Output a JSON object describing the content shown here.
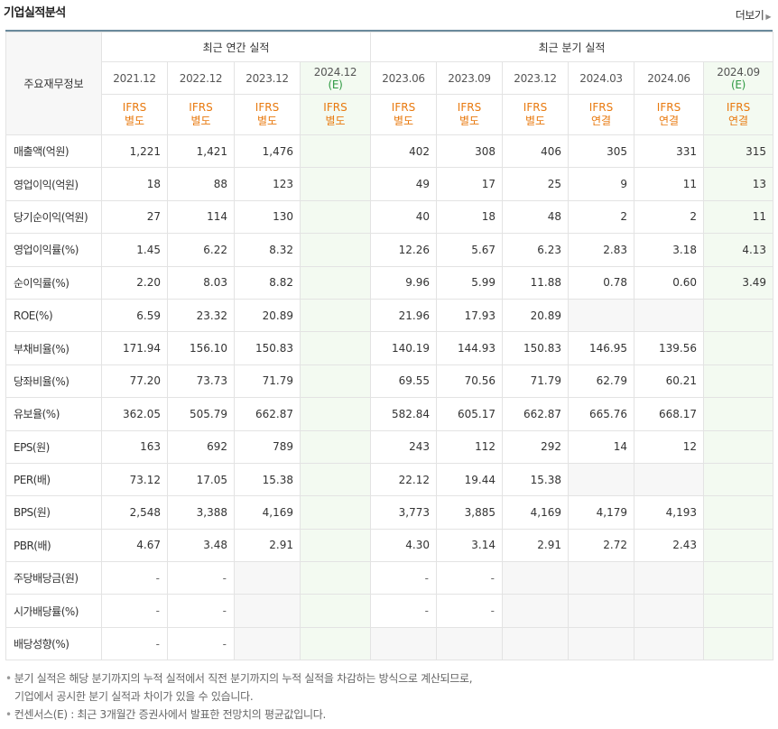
{
  "section": {
    "title": "기업실적분석",
    "more_label": "더보기"
  },
  "header": {
    "row_label": "주요재무정보",
    "annual_group": "최근 연간 실적",
    "quarter_group": "최근 분기 실적",
    "annual_periods": [
      {
        "label": "2021.12",
        "est": "",
        "ifrs": "IFRS",
        "basis": "별도"
      },
      {
        "label": "2022.12",
        "est": "",
        "ifrs": "IFRS",
        "basis": "별도"
      },
      {
        "label": "2023.12",
        "est": "",
        "ifrs": "IFRS",
        "basis": "별도"
      },
      {
        "label": "2024.12",
        "est": "(E)",
        "ifrs": "IFRS",
        "basis": "별도"
      }
    ],
    "quarter_periods": [
      {
        "label": "2023.06",
        "est": "",
        "ifrs": "IFRS",
        "basis": "별도"
      },
      {
        "label": "2023.09",
        "est": "",
        "ifrs": "IFRS",
        "basis": "별도"
      },
      {
        "label": "2023.12",
        "est": "",
        "ifrs": "IFRS",
        "basis": "별도"
      },
      {
        "label": "2024.03",
        "est": "",
        "ifrs": "IFRS",
        "basis": "연결"
      },
      {
        "label": "2024.06",
        "est": "",
        "ifrs": "IFRS",
        "basis": "연결"
      },
      {
        "label": "2024.09",
        "est": "(E)",
        "ifrs": "IFRS",
        "basis": "연결"
      }
    ]
  },
  "rows": [
    {
      "label": "매출액(억원)",
      "annual": [
        "1,221",
        "1,421",
        "1,476",
        ""
      ],
      "quarter": [
        "402",
        "308",
        "406",
        "305",
        "331",
        "315"
      ]
    },
    {
      "label": "영업이익(억원)",
      "annual": [
        "18",
        "88",
        "123",
        ""
      ],
      "quarter": [
        "49",
        "17",
        "25",
        "9",
        "11",
        "13"
      ]
    },
    {
      "label": "당기순이익(억원)",
      "annual": [
        "27",
        "114",
        "130",
        ""
      ],
      "quarter": [
        "40",
        "18",
        "48",
        "2",
        "2",
        "11"
      ]
    },
    {
      "label": "영업이익률(%)",
      "annual": [
        "1.45",
        "6.22",
        "8.32",
        ""
      ],
      "quarter": [
        "12.26",
        "5.67",
        "6.23",
        "2.83",
        "3.18",
        "4.13"
      ]
    },
    {
      "label": "순이익률(%)",
      "annual": [
        "2.20",
        "8.03",
        "8.82",
        ""
      ],
      "quarter": [
        "9.96",
        "5.99",
        "11.88",
        "0.78",
        "0.60",
        "3.49"
      ]
    },
    {
      "label": "ROE(%)",
      "annual": [
        "6.59",
        "23.32",
        "20.89",
        ""
      ],
      "quarter": [
        "21.96",
        "17.93",
        "20.89",
        "",
        "",
        ""
      ]
    },
    {
      "label": "부채비율(%)",
      "annual": [
        "171.94",
        "156.10",
        "150.83",
        ""
      ],
      "quarter": [
        "140.19",
        "144.93",
        "150.83",
        "146.95",
        "139.56",
        ""
      ]
    },
    {
      "label": "당좌비율(%)",
      "annual": [
        "77.20",
        "73.73",
        "71.79",
        ""
      ],
      "quarter": [
        "69.55",
        "70.56",
        "71.79",
        "62.79",
        "60.21",
        ""
      ]
    },
    {
      "label": "유보율(%)",
      "annual": [
        "362.05",
        "505.79",
        "662.87",
        ""
      ],
      "quarter": [
        "582.84",
        "605.17",
        "662.87",
        "665.76",
        "668.17",
        ""
      ]
    },
    {
      "label": "EPS(원)",
      "annual": [
        "163",
        "692",
        "789",
        ""
      ],
      "quarter": [
        "243",
        "112",
        "292",
        "14",
        "12",
        ""
      ]
    },
    {
      "label": "PER(배)",
      "annual": [
        "73.12",
        "17.05",
        "15.38",
        ""
      ],
      "quarter": [
        "22.12",
        "19.44",
        "15.38",
        "",
        "",
        ""
      ]
    },
    {
      "label": "BPS(원)",
      "annual": [
        "2,548",
        "3,388",
        "4,169",
        ""
      ],
      "quarter": [
        "3,773",
        "3,885",
        "4,169",
        "4,179",
        "4,193",
        ""
      ]
    },
    {
      "label": "PBR(배)",
      "annual": [
        "4.67",
        "3.48",
        "2.91",
        ""
      ],
      "quarter": [
        "4.30",
        "3.14",
        "2.91",
        "2.72",
        "2.43",
        ""
      ]
    },
    {
      "label": "주당배당금(원)",
      "annual": [
        "-",
        "-",
        "",
        ""
      ],
      "quarter": [
        "-",
        "-",
        "",
        "",
        "",
        ""
      ]
    },
    {
      "label": "시가배당률(%)",
      "annual": [
        "-",
        "-",
        "",
        ""
      ],
      "quarter": [
        "-",
        "-",
        "",
        "",
        "",
        ""
      ]
    },
    {
      "label": "배당성향(%)",
      "annual": [
        "-",
        "-",
        "",
        ""
      ],
      "quarter": [
        "",
        "",
        "",
        "",
        "",
        ""
      ]
    }
  ],
  "group_breaks": [
    3,
    6,
    9,
    13
  ],
  "notes": {
    "line1": "분기 실적은 해당 분기까지의 누적 실적에서 직전 분기까지의 누적 실적을 차감하는 방식으로 계산되므로,",
    "line2": "기업에서 공시한 분기 실적과 차이가 있을 수 있습니다.",
    "line3": "컨센서스(E) : 최근 3개월간 증권사에서 발표한 전망치의 평균값입니다."
  }
}
